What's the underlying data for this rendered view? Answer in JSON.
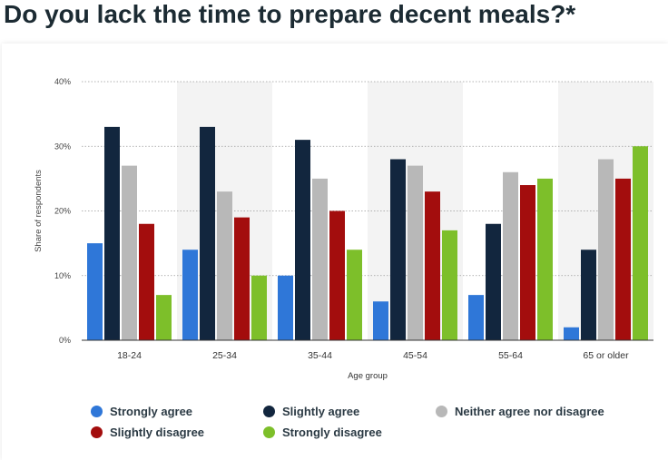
{
  "page": {
    "title": "Do you lack the time to prepare decent meals?*"
  },
  "chart_data": {
    "type": "bar",
    "title": "Do you lack the time to prepare decent meals?*",
    "xlabel": "Age group",
    "ylabel": "Share of respondents",
    "ylim": [
      0,
      40
    ],
    "y_ticks": [
      "0%",
      "10%",
      "20%",
      "30%",
      "40%"
    ],
    "y_tick_values": [
      0,
      10,
      20,
      30,
      40
    ],
    "grid": true,
    "legend_position": "bottom",
    "categories": [
      "18-24",
      "25-34",
      "35-44",
      "45-54",
      "55-64",
      "65 or older"
    ],
    "series": [
      {
        "name": "Strongly agree",
        "color": "#2f77d8",
        "values": [
          15,
          14,
          10,
          6,
          7,
          2
        ]
      },
      {
        "name": "Slightly agree",
        "color": "#12263e",
        "values": [
          33,
          33,
          31,
          28,
          18,
          14
        ]
      },
      {
        "name": "Neither agree nor disagree",
        "color": "#b8b8b8",
        "values": [
          27,
          23,
          25,
          27,
          26,
          28
        ]
      },
      {
        "name": "Slightly disagree",
        "color": "#a30d0d",
        "values": [
          18,
          19,
          20,
          23,
          24,
          25
        ]
      },
      {
        "name": "Strongly disagree",
        "color": "#7dbf2a",
        "values": [
          7,
          10,
          14,
          17,
          25,
          30
        ]
      }
    ]
  }
}
